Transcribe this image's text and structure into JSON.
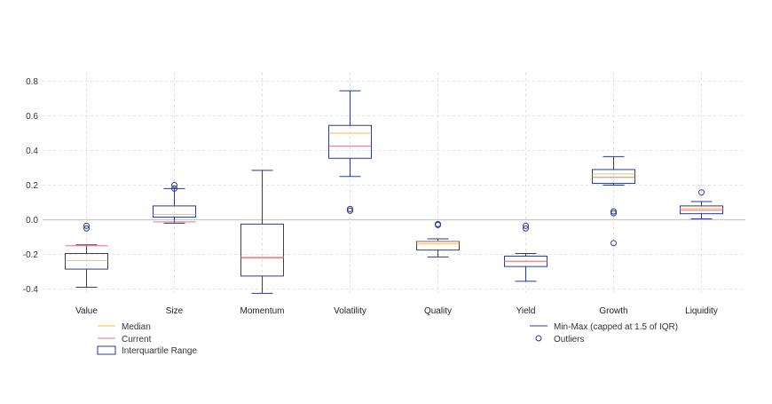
{
  "chart_data": {
    "type": "boxplot",
    "title": "",
    "xlabel": "",
    "ylabel": "",
    "ylim": [
      -0.45,
      0.85
    ],
    "yticks": [
      -0.4,
      -0.2,
      0.0,
      0.2,
      0.4,
      0.6,
      0.8
    ],
    "ytick_labels": [
      "-0.4",
      "-0.2",
      "0.0",
      "0.2",
      "0.4",
      "0.6",
      "0.8"
    ],
    "grid": true,
    "zero_line": true,
    "categories": [
      "Value",
      "Size",
      "Momentum",
      "Volatility",
      "Quality",
      "Yield",
      "Growth",
      "Liquidity"
    ],
    "boxes": [
      {
        "name": "Value",
        "min": -0.39,
        "q1": -0.285,
        "median": -0.235,
        "q3": -0.195,
        "max": -0.145,
        "current": -0.15,
        "outliers": [
          -0.035,
          -0.05
        ]
      },
      {
        "name": "Size",
        "min": -0.02,
        "q1": 0.015,
        "median": 0.03,
        "q3": 0.08,
        "max": 0.18,
        "current": -0.012,
        "outliers": [
          0.2,
          0.18
        ]
      },
      {
        "name": "Momentum",
        "min": -0.425,
        "q1": -0.325,
        "median": -0.215,
        "q3": -0.025,
        "max": 0.285,
        "current": -0.22,
        "outliers": []
      },
      {
        "name": "Volatility",
        "min": 0.25,
        "q1": 0.355,
        "median": 0.5,
        "q3": 0.545,
        "max": 0.745,
        "current": 0.425,
        "outliers": [
          0.062,
          0.052
        ]
      },
      {
        "name": "Quality",
        "min": -0.215,
        "q1": -0.175,
        "median": -0.14,
        "q3": -0.125,
        "max": -0.11,
        "current": -0.125,
        "outliers": [
          -0.025,
          -0.03
        ]
      },
      {
        "name": "Yield",
        "min": -0.355,
        "q1": -0.27,
        "median": -0.24,
        "q3": -0.21,
        "max": -0.195,
        "current": -0.24,
        "outliers": [
          -0.035,
          -0.05
        ]
      },
      {
        "name": "Growth",
        "min": 0.2,
        "q1": 0.21,
        "median": 0.265,
        "q3": 0.29,
        "max": 0.365,
        "current": 0.245,
        "outliers": [
          0.048,
          0.038,
          -0.135
        ]
      },
      {
        "name": "Liquidity",
        "min": 0.005,
        "q1": 0.035,
        "median": 0.065,
        "q3": 0.08,
        "max": 0.105,
        "current": 0.055,
        "outliers": [
          0.158
        ]
      }
    ],
    "legend": [
      {
        "key": "median",
        "label": "Median"
      },
      {
        "key": "current",
        "label": "Current"
      },
      {
        "key": "iqr",
        "label": "Interquartile Range"
      },
      {
        "key": "minmax",
        "label": "Min-Max (capped at 1.5 of IQR)"
      },
      {
        "key": "outliers",
        "label": "Outliers"
      }
    ],
    "colors": {
      "box": "#2b3a8f",
      "median": "#f0c24a",
      "current": "#e8728a",
      "grid": "#d9d9d9",
      "zero": "#c8c8c8"
    }
  }
}
